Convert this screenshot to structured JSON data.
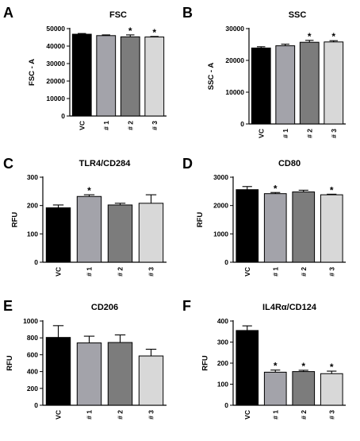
{
  "colors": {
    "VC": "#000000",
    "#1": "#a3a3aa",
    "#2": "#7c7c7c",
    "#3": "#d8d8d8",
    "axis": "#000000"
  },
  "chart_data": [
    {
      "panel": "A",
      "type": "bar",
      "title": "FSC",
      "ylabel": "FSC - A",
      "categories": [
        "VC",
        "# 1",
        "# 2",
        "# 3"
      ],
      "values": [
        46800,
        46000,
        45300,
        45200
      ],
      "errors": [
        400,
        400,
        1100,
        300
      ],
      "significant": [
        false,
        false,
        true,
        true
      ],
      "ylim": [
        0,
        50000
      ],
      "yticks": [
        0,
        10000,
        20000,
        30000,
        40000,
        50000
      ]
    },
    {
      "panel": "B",
      "type": "bar",
      "title": "SSC",
      "ylabel": "SSC - A",
      "categories": [
        "VC",
        "# 1",
        "# 2",
        "# 3"
      ],
      "values": [
        23900,
        24600,
        25700,
        25800
      ],
      "errors": [
        400,
        500,
        600,
        400
      ],
      "significant": [
        false,
        false,
        true,
        true
      ],
      "ylim": [
        0,
        30000
      ],
      "yticks": [
        0,
        10000,
        20000,
        30000
      ]
    },
    {
      "panel": "C",
      "type": "bar",
      "title": "TLR4/CD284",
      "ylabel": "RFU",
      "categories": [
        "VC",
        "# 1",
        "# 2",
        "# 3"
      ],
      "values": [
        192,
        232,
        202,
        208
      ],
      "errors": [
        10,
        6,
        6,
        30
      ],
      "significant": [
        false,
        true,
        false,
        false
      ],
      "ylim": [
        0,
        300
      ],
      "yticks": [
        0,
        100,
        200,
        300
      ]
    },
    {
      "panel": "D",
      "type": "bar",
      "title": "CD80",
      "ylabel": "RFU",
      "categories": [
        "VC",
        "# 1",
        "# 2",
        "# 3"
      ],
      "values": [
        2560,
        2420,
        2480,
        2380
      ],
      "errors": [
        110,
        40,
        60,
        20
      ],
      "significant": [
        false,
        true,
        false,
        true
      ],
      "ylim": [
        0,
        3000
      ],
      "yticks": [
        0,
        1000,
        2000,
        3000
      ]
    },
    {
      "panel": "E",
      "type": "bar",
      "title": "CD206",
      "ylabel": "RFU",
      "categories": [
        "VC",
        "# 1",
        "# 2",
        "# 3"
      ],
      "values": [
        805,
        740,
        745,
        585
      ],
      "errors": [
        140,
        80,
        90,
        80
      ],
      "significant": [
        false,
        false,
        false,
        false
      ],
      "ylim": [
        0,
        1000
      ],
      "yticks": [
        0,
        200,
        400,
        600,
        800,
        1000
      ]
    },
    {
      "panel": "F",
      "type": "bar",
      "title": "IL4Rα/CD124",
      "ylabel": "RFU",
      "categories": [
        "VC",
        "# 1",
        "# 2",
        "# 3"
      ],
      "values": [
        355,
        157,
        160,
        150
      ],
      "errors": [
        22,
        10,
        6,
        12
      ],
      "significant": [
        false,
        true,
        true,
        true
      ],
      "ylim": [
        0,
        400
      ],
      "yticks": [
        0,
        100,
        200,
        300,
        400
      ]
    }
  ]
}
